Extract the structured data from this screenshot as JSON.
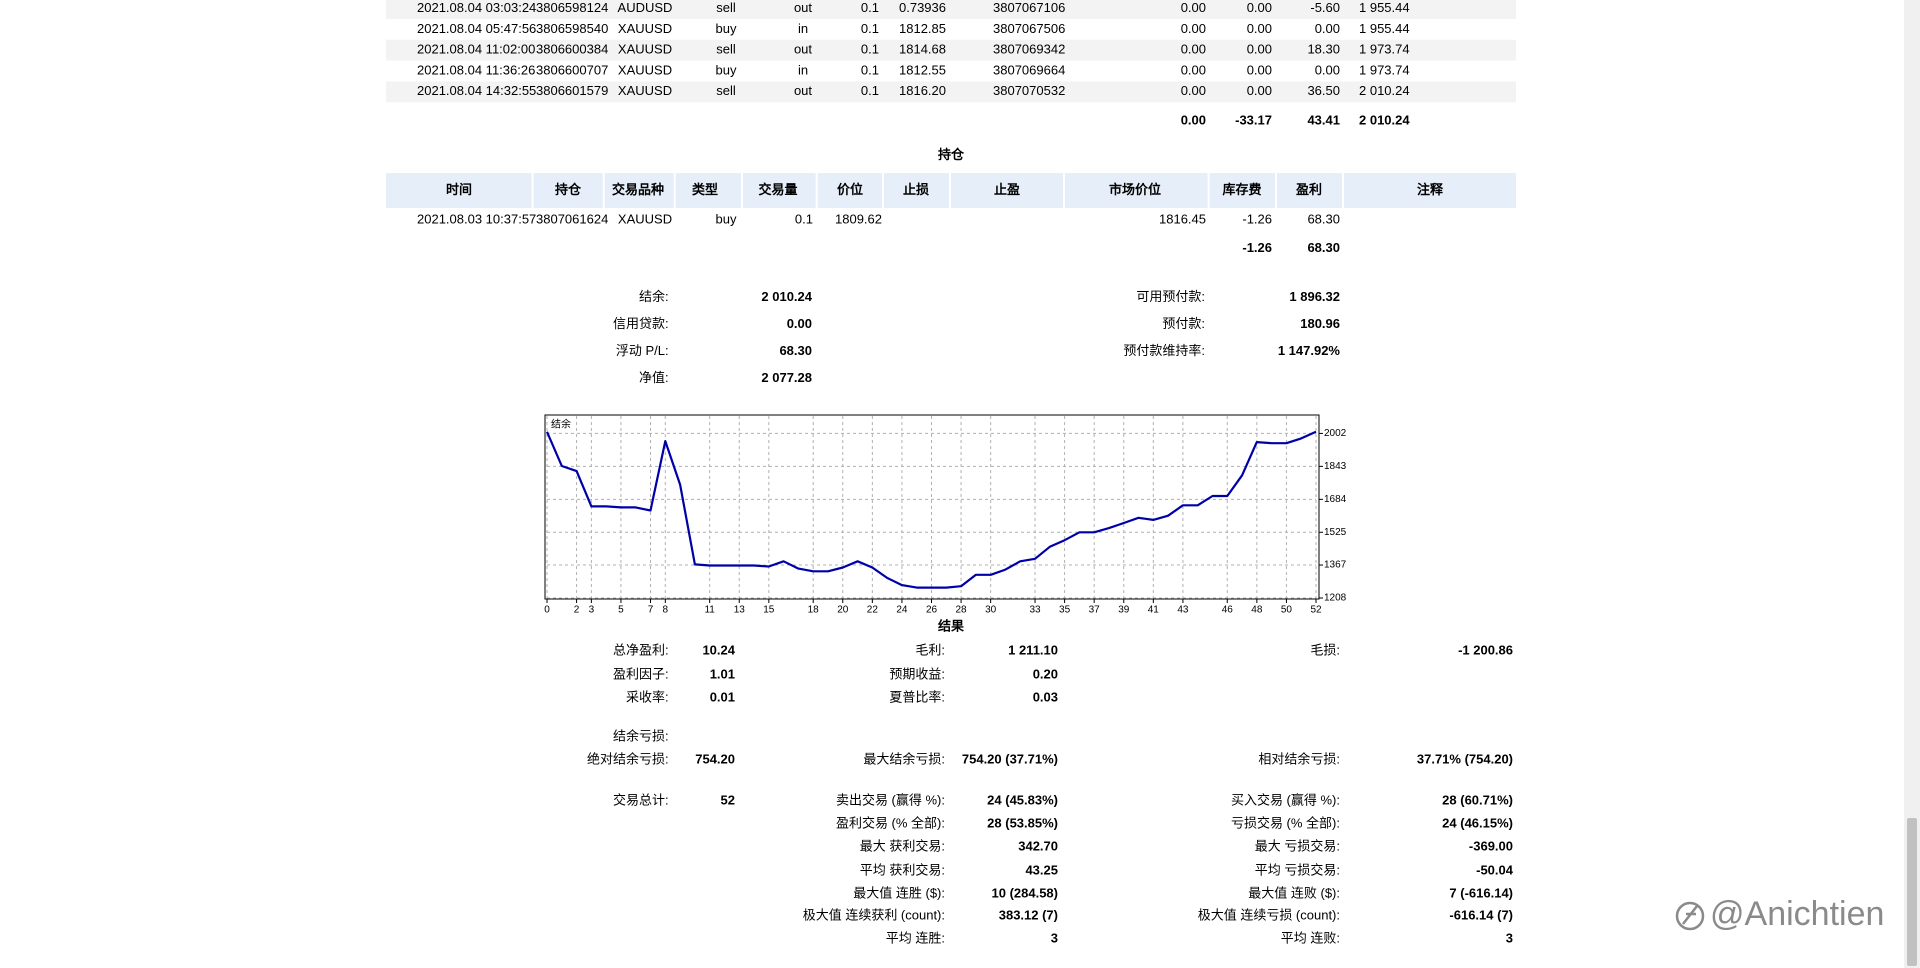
{
  "deals": {
    "rows": [
      [
        "2021.08.04 03:03:24",
        "3806598124",
        "AUDUSD",
        "sell",
        "out",
        "0.1",
        "0.73936",
        "3807067106",
        "0.00",
        "0.00",
        "-5.60",
        "1 955.44"
      ],
      [
        "2021.08.04 05:47:56",
        "3806598540",
        "XAUUSD",
        "buy",
        "in",
        "0.1",
        "1812.85",
        "3807067506",
        "0.00",
        "0.00",
        "0.00",
        "1 955.44"
      ],
      [
        "2021.08.04 11:02:00",
        "3806600384",
        "XAUUSD",
        "sell",
        "out",
        "0.1",
        "1814.68",
        "3807069342",
        "0.00",
        "0.00",
        "18.30",
        "1 973.74"
      ],
      [
        "2021.08.04 11:36:26",
        "3806600707",
        "XAUUSD",
        "buy",
        "in",
        "0.1",
        "1812.55",
        "3807069664",
        "0.00",
        "0.00",
        "0.00",
        "1 973.74"
      ],
      [
        "2021.08.04 14:32:55",
        "3806601579",
        "XAUUSD",
        "sell",
        "out",
        "0.1",
        "1816.20",
        "3807070532",
        "0.00",
        "0.00",
        "36.50",
        "2 010.24"
      ]
    ],
    "totals": [
      "0.00",
      "-33.17",
      "43.41",
      "2 010.24"
    ]
  },
  "positions": {
    "title": "持仓",
    "headers": [
      "时间",
      "持仓",
      "交易品种",
      "类型",
      "交易量",
      "价位",
      "止损",
      "止盈",
      "市场价位",
      "库存费",
      "盈利",
      "注释"
    ],
    "rows": [
      {
        "time": "2021.08.03 10:37:57",
        "position": "3807061624",
        "symbol": "XAUUSD",
        "type": "buy",
        "volume": "0.1",
        "price": "1809.62",
        "market_price": "1816.45",
        "swap": "-1.26",
        "profit": "68.30"
      }
    ],
    "totals": {
      "swap": "-1.26",
      "profit": "68.30"
    }
  },
  "summary": {
    "left": [
      {
        "label": "结余:",
        "value": "2 010.24"
      },
      {
        "label": "信用贷款:",
        "value": "0.00"
      },
      {
        "label": "浮动 P/L:",
        "value": "68.30"
      },
      {
        "label": "净值:",
        "value": "2 077.28"
      }
    ],
    "right": [
      {
        "label": "可用预付款:",
        "value": "1 896.32"
      },
      {
        "label": "预付款:",
        "value": "180.96"
      },
      {
        "label": "预付款维持率:",
        "value": "1 147.92%"
      }
    ]
  },
  "chart_data": {
    "type": "line",
    "label": "结余",
    "x": [
      0,
      1,
      2,
      3,
      4,
      5,
      6,
      7,
      8,
      9,
      10,
      11,
      12,
      13,
      14,
      15,
      16,
      17,
      18,
      19,
      20,
      21,
      22,
      23,
      24,
      25,
      26,
      27,
      28,
      29,
      30,
      31,
      32,
      33,
      34,
      35,
      36,
      37,
      38,
      39,
      40,
      41,
      42,
      43,
      44,
      45,
      46,
      47,
      48,
      49,
      50,
      51,
      52
    ],
    "values": [
      2010,
      1845,
      1820,
      1650,
      1650,
      1645,
      1645,
      1630,
      1965,
      1755,
      1370,
      1365,
      1365,
      1365,
      1365,
      1360,
      1385,
      1350,
      1337,
      1337,
      1355,
      1385,
      1355,
      1305,
      1270,
      1258,
      1258,
      1258,
      1265,
      1320,
      1320,
      1345,
      1385,
      1397,
      1455,
      1487,
      1525,
      1525,
      1545,
      1570,
      1595,
      1585,
      1605,
      1655,
      1655,
      1700,
      1700,
      1800,
      1960,
      1955,
      1955,
      1978,
      2010
    ],
    "color": "#0000a8",
    "xlim": [
      0,
      52
    ],
    "xticks": [
      0,
      2,
      3,
      5,
      7,
      8,
      11,
      13,
      15,
      18,
      20,
      22,
      24,
      26,
      28,
      30,
      33,
      35,
      37,
      39,
      41,
      43,
      46,
      48,
      50,
      52
    ],
    "ylim": [
      1208,
      2086
    ],
    "yticks": [
      1208,
      1367,
      1525,
      1684,
      1843,
      2002
    ],
    "grid": true
  },
  "results": {
    "title": "结果",
    "rows": [
      [
        {
          "label": "总净盈利:",
          "value": "10.24"
        },
        {
          "label": "毛利:",
          "value": "1 211.10"
        },
        {
          "label": "毛损:",
          "value": "-1 200.86"
        }
      ],
      [
        {
          "label": "盈利因子:",
          "value": "1.01"
        },
        {
          "label": "预期收益:",
          "value": "0.20"
        }
      ],
      [
        {
          "label": "采收率:",
          "value": "0.01"
        },
        {
          "label": "夏普比率:",
          "value": "0.03"
        }
      ],
      [
        {
          "label": "结余亏损:"
        }
      ],
      [
        {
          "label": "绝对结余亏损:",
          "value": "754.20"
        },
        {
          "label": "最大结余亏损:",
          "value": "754.20 (37.71%)"
        },
        {
          "label": "相对结余亏损:",
          "value": "37.71% (754.20)"
        }
      ],
      [
        {
          "label": "交易总计:",
          "value": "52"
        },
        {
          "label": "卖出交易 (赢得 %):",
          "value": "24 (45.83%)"
        },
        {
          "label": "买入交易 (赢得 %):",
          "value": "28 (60.71%)"
        }
      ],
      [
        null,
        {
          "label": "盈利交易 (% 全部):",
          "value": "28 (53.85%)"
        },
        {
          "label": "亏损交易 (% 全部):",
          "value": "24 (46.15%)"
        }
      ],
      [
        null,
        {
          "label": "最大 获利交易:",
          "value": "342.70"
        },
        {
          "label": "最大 亏损交易:",
          "value": "-369.00"
        }
      ],
      [
        null,
        {
          "label": "平均 获利交易:",
          "value": "43.25"
        },
        {
          "label": "平均 亏损交易:",
          "value": "-50.04"
        }
      ],
      [
        null,
        {
          "label": "最大值 连胜 ($):",
          "value": "10 (284.58)"
        },
        {
          "label": "最大值 连败 ($):",
          "value": "7 (-616.14)"
        }
      ],
      [
        null,
        {
          "label": "极大值 连续获利 (count):",
          "value": "383.12 (7)"
        },
        {
          "label": "极大值 连续亏损 (count):",
          "value": "-616.14 (7)"
        }
      ],
      [
        null,
        {
          "label": "平均 连胜:",
          "value": "3"
        },
        {
          "label": "平均 连败:",
          "value": "3"
        }
      ]
    ]
  },
  "watermark": "@Anichtien"
}
